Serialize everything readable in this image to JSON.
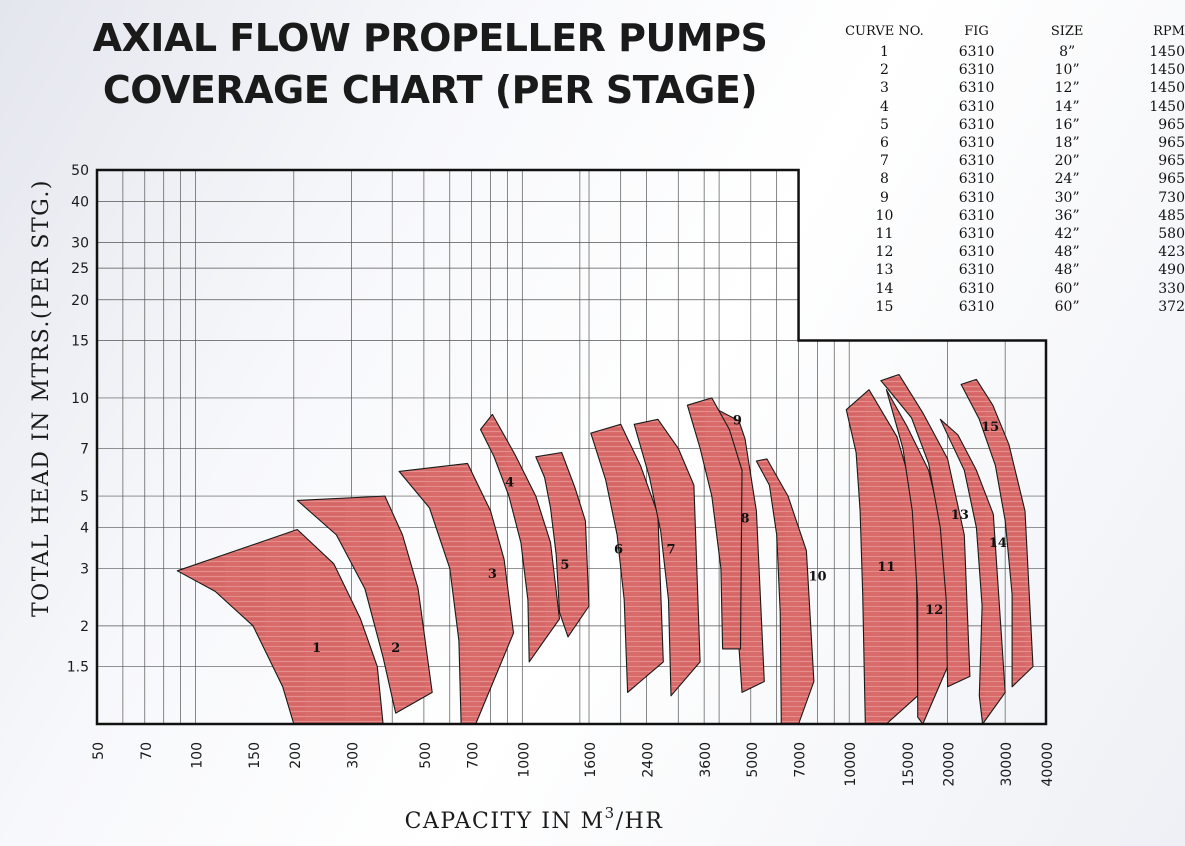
{
  "title_line1": "AXIAL FLOW PROPELLER PUMPS",
  "title_line2": "COVERAGE CHART (PER STAGE)",
  "table": {
    "headers": [
      "CURVE  NO.",
      "FIG",
      "SIZE",
      "RPM"
    ],
    "rows": [
      {
        "curve": "1",
        "fig": "6310",
        "size": "8”",
        "rpm": "1450"
      },
      {
        "curve": "2",
        "fig": "6310",
        "size": "10”",
        "rpm": "1450"
      },
      {
        "curve": "3",
        "fig": "6310",
        "size": "12”",
        "rpm": "1450"
      },
      {
        "curve": "4",
        "fig": "6310",
        "size": "14”",
        "rpm": "1450"
      },
      {
        "curve": "5",
        "fig": "6310",
        "size": "16”",
        "rpm": "965"
      },
      {
        "curve": "6",
        "fig": "6310",
        "size": "18”",
        "rpm": "965"
      },
      {
        "curve": "7",
        "fig": "6310",
        "size": "20”",
        "rpm": "965"
      },
      {
        "curve": "8",
        "fig": "6310",
        "size": "24”",
        "rpm": "965"
      },
      {
        "curve": "9",
        "fig": "6310",
        "size": "30”",
        "rpm": "730"
      },
      {
        "curve": "10",
        "fig": "6310",
        "size": "36”",
        "rpm": "485"
      },
      {
        "curve": "11",
        "fig": "6310",
        "size": "42”",
        "rpm": "580"
      },
      {
        "curve": "12",
        "fig": "6310",
        "size": "48”",
        "rpm": "423"
      },
      {
        "curve": "13",
        "fig": "6310",
        "size": "48”",
        "rpm": "490"
      },
      {
        "curve": "14",
        "fig": "6310",
        "size": "60”",
        "rpm": "330"
      },
      {
        "curve": "15",
        "fig": "6310",
        "size": "60”",
        "rpm": "372"
      }
    ]
  },
  "chart_data": {
    "type": "area",
    "xlabel_main": "CAPACITY IN M",
    "xlabel_sup": "3",
    "xlabel_tail": "/HR",
    "ylabel": "TOTAL HEAD IN MTRS.(PER STG.)",
    "xscale": "log",
    "yscale": "log",
    "xlim": [
      50,
      40000
    ],
    "ylim": [
      1,
      50
    ],
    "grid": true,
    "x_ticks": [
      50,
      70,
      100,
      150,
      200,
      300,
      500,
      700,
      1000,
      1600,
      2400,
      3600,
      5000,
      7000,
      10000,
      15000,
      20000,
      30000,
      40000
    ],
    "y_ticks": [
      1.5,
      2,
      3,
      4,
      5,
      7,
      10,
      15,
      20,
      25,
      30,
      40,
      50
    ],
    "fill_color": "#d96b6b",
    "edge_color": "#1a1a1a",
    "series": [
      {
        "name": "1",
        "label_at": [
          235,
          1.72
        ],
        "points": [
          [
            88,
            2.95
          ],
          [
            205,
            3.95
          ],
          [
            265,
            3.1
          ],
          [
            320,
            2.1
          ],
          [
            360,
            1.5
          ],
          [
            375,
            1.0
          ],
          [
            200,
            1.0
          ],
          [
            185,
            1.3
          ],
          [
            150,
            2.0
          ],
          [
            115,
            2.55
          ]
        ]
      },
      {
        "name": "2",
        "label_at": [
          410,
          1.72
        ],
        "points": [
          [
            205,
            4.85
          ],
          [
            380,
            5.0
          ],
          [
            430,
            3.8
          ],
          [
            480,
            2.6
          ],
          [
            530,
            1.25
          ],
          [
            410,
            1.08
          ],
          [
            375,
            1.6
          ],
          [
            330,
            2.6
          ],
          [
            270,
            3.8
          ]
        ]
      },
      {
        "name": "3",
        "label_at": [
          810,
          2.9
        ],
        "points": [
          [
            420,
            5.95
          ],
          [
            680,
            6.3
          ],
          [
            800,
            4.5
          ],
          [
            880,
            3.2
          ],
          [
            940,
            1.9
          ],
          [
            720,
            1.0
          ],
          [
            650,
            1.0
          ],
          [
            640,
            1.8
          ],
          [
            600,
            3.0
          ],
          [
            520,
            4.6
          ]
        ]
      },
      {
        "name": "4",
        "label_at": [
          915,
          5.55
        ],
        "points": [
          [
            745,
            8.0
          ],
          [
            810,
            8.9
          ],
          [
            950,
            6.7
          ],
          [
            1100,
            5.0
          ],
          [
            1220,
            3.6
          ],
          [
            1300,
            2.1
          ],
          [
            1050,
            1.55
          ],
          [
            1040,
            2.4
          ],
          [
            990,
            3.6
          ],
          [
            910,
            5.0
          ],
          [
            820,
            6.6
          ]
        ]
      },
      {
        "name": "5",
        "label_at": [
          1350,
          3.1
        ],
        "points": [
          [
            1100,
            6.6
          ],
          [
            1320,
            6.8
          ],
          [
            1450,
            5.3
          ],
          [
            1560,
            4.2
          ],
          [
            1600,
            2.3
          ],
          [
            1380,
            1.85
          ],
          [
            1300,
            2.2
          ],
          [
            1270,
            3.3
          ],
          [
            1220,
            4.6
          ],
          [
            1170,
            5.7
          ]
        ]
      },
      {
        "name": "6",
        "label_at": [
          1970,
          3.45
        ],
        "points": [
          [
            1620,
            7.8
          ],
          [
            2000,
            8.3
          ],
          [
            2300,
            6.2
          ],
          [
            2600,
            4.4
          ],
          [
            2700,
            1.55
          ],
          [
            2100,
            1.25
          ],
          [
            2050,
            2.4
          ],
          [
            1950,
            3.8
          ],
          [
            1800,
            5.6
          ]
        ]
      },
      {
        "name": "7",
        "label_at": [
          2850,
          3.45
        ],
        "points": [
          [
            2200,
            8.3
          ],
          [
            2600,
            8.6
          ],
          [
            3000,
            7.0
          ],
          [
            3350,
            5.4
          ],
          [
            3500,
            1.55
          ],
          [
            2850,
            1.22
          ],
          [
            2800,
            2.4
          ],
          [
            2650,
            3.9
          ],
          [
            2450,
            5.7
          ]
        ]
      },
      {
        "name": "8",
        "label_at": [
          4800,
          4.3
        ],
        "points": [
          [
            3800,
            9.4
          ],
          [
            4600,
            8.5
          ],
          [
            4800,
            7.5
          ],
          [
            5200,
            4.5
          ],
          [
            5500,
            1.35
          ],
          [
            4700,
            1.25
          ],
          [
            4500,
            2.4
          ],
          [
            4300,
            3.8
          ],
          [
            4000,
            6.0
          ]
        ]
      },
      {
        "name": "9",
        "label_at": [
          4550,
          8.6
        ],
        "points": [
          [
            3200,
            9.5
          ],
          [
            3800,
            10.0
          ],
          [
            4300,
            8.0
          ],
          [
            4700,
            6.0
          ],
          [
            4650,
            1.7
          ],
          [
            4100,
            1.7
          ],
          [
            4050,
            3.0
          ],
          [
            3800,
            5.0
          ],
          [
            3500,
            7.0
          ]
        ]
      },
      {
        "name": "10",
        "label_at": [
          8000,
          2.85
        ],
        "points": [
          [
            5200,
            6.4
          ],
          [
            5600,
            6.5
          ],
          [
            6500,
            5.0
          ],
          [
            7400,
            3.4
          ],
          [
            7800,
            1.35
          ],
          [
            7000,
            1.0
          ],
          [
            6200,
            1.0
          ],
          [
            6150,
            2.2
          ],
          [
            6000,
            3.8
          ],
          [
            5700,
            5.4
          ]
        ]
      },
      {
        "name": "11",
        "label_at": [
          13000,
          3.05
        ],
        "points": [
          [
            9800,
            9.2
          ],
          [
            11500,
            10.6
          ],
          [
            14000,
            7.6
          ],
          [
            16000,
            4.8
          ],
          [
            16200,
            1.22
          ],
          [
            13000,
            1.0
          ],
          [
            11200,
            1.0
          ],
          [
            11000,
            2.5
          ],
          [
            10800,
            4.5
          ],
          [
            10500,
            6.8
          ]
        ]
      },
      {
        "name": "12",
        "label_at": [
          18200,
          2.25
        ],
        "points": [
          [
            13000,
            10.6
          ],
          [
            15000,
            8.2
          ],
          [
            17500,
            6.0
          ],
          [
            19500,
            3.8
          ],
          [
            20300,
            1.55
          ],
          [
            16800,
            1.0
          ],
          [
            16200,
            1.05
          ],
          [
            16200,
            2.4
          ],
          [
            15600,
            4.5
          ],
          [
            14600,
            7.0
          ]
        ]
      },
      {
        "name": "13",
        "label_at": [
          21800,
          4.4
        ],
        "points": [
          [
            12500,
            11.3
          ],
          [
            14200,
            11.8
          ],
          [
            16800,
            9.0
          ],
          [
            20000,
            6.5
          ],
          [
            22500,
            3.8
          ],
          [
            23400,
            1.4
          ],
          [
            20000,
            1.3
          ],
          [
            19800,
            2.4
          ],
          [
            19000,
            4.0
          ],
          [
            17500,
            6.3
          ],
          [
            15500,
            8.7
          ]
        ]
      },
      {
        "name": "14",
        "label_at": [
          28500,
          3.62
        ],
        "points": [
          [
            19000,
            8.6
          ],
          [
            21500,
            7.7
          ],
          [
            24500,
            6.0
          ],
          [
            27600,
            4.4
          ],
          [
            30000,
            1.25
          ],
          [
            25600,
            1.0
          ],
          [
            25000,
            1.22
          ],
          [
            25500,
            2.3
          ],
          [
            24500,
            4.0
          ],
          [
            22500,
            6.0
          ]
        ]
      },
      {
        "name": "15",
        "label_at": [
          27000,
          8.2
        ],
        "points": [
          [
            22000,
            11.0
          ],
          [
            24500,
            11.4
          ],
          [
            27500,
            9.5
          ],
          [
            30800,
            7.2
          ],
          [
            34500,
            4.5
          ],
          [
            36500,
            1.5
          ],
          [
            31500,
            1.3
          ],
          [
            31500,
            2.5
          ],
          [
            30000,
            4.2
          ],
          [
            28000,
            6.2
          ],
          [
            25000,
            8.6
          ]
        ]
      }
    ]
  }
}
